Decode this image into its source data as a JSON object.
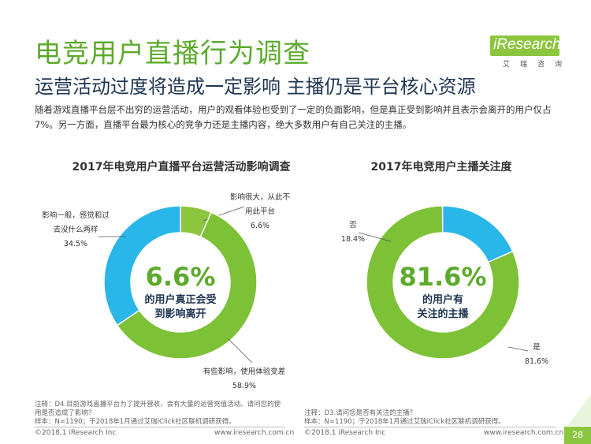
{
  "header": {
    "title": "电竞用户直播行为调查",
    "subtitle": "运营活动过度将造成一定影响 主播仍是平台核心资源",
    "intro": "随着游戏直播平台层不出穷的运营活动，用户的观看体验也受到了一定的负面影响，但是真正受到影响并且表示会离开的用户仅占7%。另一方面，直播平台最为核心的竞争力还是主播内容，绝大多数用户有自己关注的主播。"
  },
  "logo": {
    "text": "iResearch",
    "cn": "艾瑞咨询"
  },
  "colors": {
    "green": "#8cc63f",
    "blue": "#29b6e8",
    "title_green": "#5daa2c",
    "navy": "#1f3552"
  },
  "chart_data": [
    {
      "type": "pie",
      "style": "donut",
      "title": "2017年电竞用户直播平台运营活动影响调查",
      "slices": [
        {
          "label_lines": [
            "影响很大，从此不",
            "用此平台"
          ],
          "value": 6.6,
          "value_label": "6.6%",
          "color": "#8cc63f"
        },
        {
          "label_lines": [
            "有些影响，使用体验变差"
          ],
          "value": 58.9,
          "value_label": "58.9%",
          "color": "#7dc136"
        },
        {
          "label_lines": [
            "影响一般，感觉和过",
            "去没什么两样"
          ],
          "value": 34.5,
          "value_label": "34.5%",
          "color": "#29b6e8"
        }
      ],
      "center_value": "6.6%",
      "center_text": [
        "的用户真正会受",
        "到影响离开"
      ]
    },
    {
      "type": "pie",
      "style": "donut",
      "title": "2017年电竞用户主播关注度",
      "slices": [
        {
          "label_lines": [
            "是"
          ],
          "value": 81.6,
          "value_label": "81.6%",
          "color": "#7dc136"
        },
        {
          "label_lines": [
            "否"
          ],
          "value": 18.4,
          "value_label": "18.4%",
          "color": "#29b6e8"
        }
      ],
      "center_value": "81.6%",
      "center_text": [
        "的用户有",
        "关注的主播"
      ]
    }
  ],
  "notes": {
    "left": "注释：D4.目前游戏直播平台为了提升营收，会有大量的运营充值活动。请问您的使用是否造成了影响？",
    "left_sample": "样本：N=1190；于2018年1月通过艾瑞iClick社区联机调研获得。",
    "right": "注释：D3.请问您是否有关注的主播？",
    "right_sample": "样本：N=1190；于2018年1月通过艾瑞iClick社区联机调研获得。"
  },
  "footer": {
    "copyright_left": "©2018.1 iResearch Inc",
    "url_left": "www.iresearch.com.cn",
    "copyright_right": "©2018.1 iResearch Inc",
    "url_right": "www.iresearch.com.cn",
    "page": "28"
  }
}
